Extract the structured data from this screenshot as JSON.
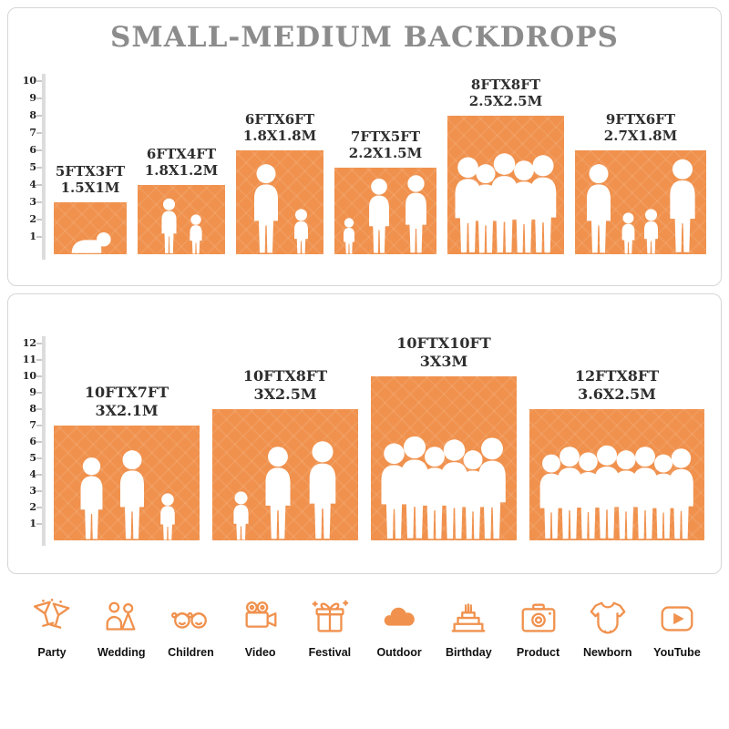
{
  "colors": {
    "orange": "#F0914D",
    "title_gray": "#8C8C8C",
    "label_dark": "#2E2E2E",
    "panel_border": "#D6D6D6"
  },
  "top_panel": {
    "title": "SMALL-MEDIUM BACKDROPS"
  },
  "chart_data": [
    {
      "type": "bar",
      "panel": "small-medium-backdrops",
      "title": "SMALL-MEDIUM BACKDROPS",
      "unit": "ft",
      "categories": [
        "5FTX3FT",
        "6FTX4FT",
        "6FTX6FT",
        "7FTX5FT",
        "8FTX8FT",
        "9FTX6FT"
      ],
      "metric_labels": [
        "1.5X1M",
        "1.8X1.2M",
        "1.8X1.8M",
        "2.2X1.5M",
        "2.5X2.5M",
        "2.7X1.8M"
      ],
      "widths_ft": [
        5,
        6,
        6,
        7,
        8,
        9
      ],
      "heights_ft": [
        3,
        4,
        6,
        5,
        8,
        6
      ],
      "ylim": [
        0,
        10
      ],
      "ruler_ticks": [
        1,
        2,
        3,
        4,
        5,
        6,
        7,
        8,
        9,
        10
      ],
      "bar_color": "#F0914D"
    },
    {
      "type": "bar",
      "panel": "large-backdrops",
      "title": "",
      "unit": "ft",
      "categories": [
        "10FTX7FT",
        "10FTX8FT",
        "10FTX10FT",
        "12FTX8FT"
      ],
      "metric_labels": [
        "3X2.1M",
        "3X2.5M",
        "3X3M",
        "3.6X2.5M"
      ],
      "widths_ft": [
        10,
        10,
        10,
        12
      ],
      "heights_ft": [
        7,
        8,
        10,
        8
      ],
      "ylim": [
        0,
        12
      ],
      "ruler_ticks": [
        1,
        2,
        3,
        4,
        5,
        6,
        7,
        8,
        9,
        10,
        11,
        12
      ],
      "bar_color": "#F0914D"
    }
  ],
  "categories_row": {
    "items": [
      {
        "label": "Party",
        "icon": "party-icon"
      },
      {
        "label": "Wedding",
        "icon": "wedding-icon"
      },
      {
        "label": "Children",
        "icon": "children-icon"
      },
      {
        "label": "Video",
        "icon": "video-icon"
      },
      {
        "label": "Festival",
        "icon": "festival-icon"
      },
      {
        "label": "Outdoor",
        "icon": "outdoor-icon"
      },
      {
        "label": "Birthday",
        "icon": "birthday-icon"
      },
      {
        "label": "Product",
        "icon": "product-icon"
      },
      {
        "label": "Newborn",
        "icon": "newborn-icon"
      },
      {
        "label": "YouTube",
        "icon": "youtube-icon"
      }
    ]
  }
}
